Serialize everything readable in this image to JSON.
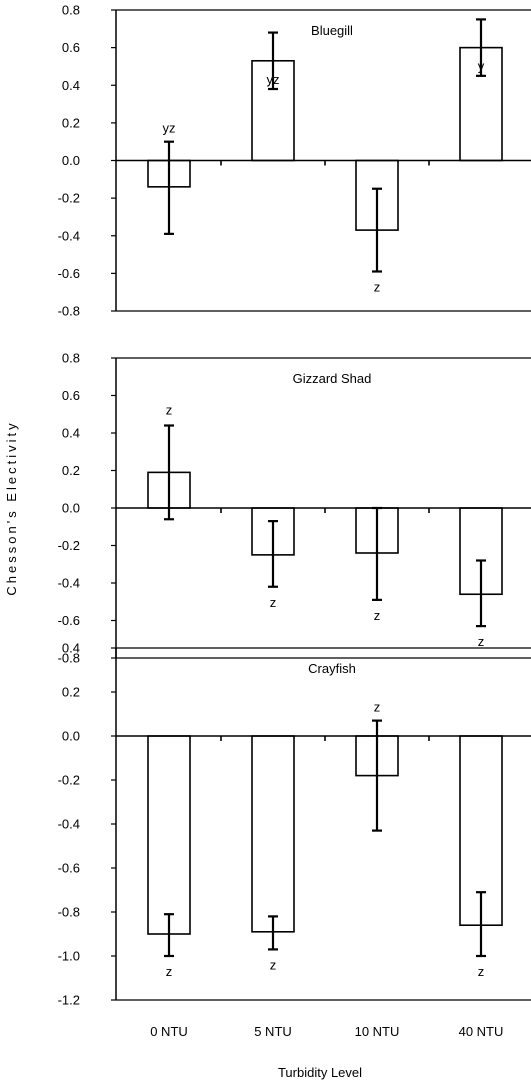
{
  "chart_data": [
    {
      "type": "bar",
      "title": "Bluegill",
      "categories": [
        "0 NTU",
        "5 NTU",
        "10 NTU",
        "40 NTU"
      ],
      "values": [
        -0.14,
        0.53,
        -0.37,
        0.6
      ],
      "error_low": [
        -0.39,
        0.38,
        -0.59,
        0.45
      ],
      "error_high": [
        0.1,
        0.68,
        -0.15,
        0.75
      ],
      "significance": [
        "yz",
        "yz",
        "z",
        "y"
      ],
      "ylim": [
        -0.8,
        0.8
      ],
      "yticks": [
        "0.8",
        "0.6",
        "0.4",
        "0.2",
        "0.0",
        "-0.2",
        "-0.4",
        "-0.6",
        "-0.8"
      ]
    },
    {
      "type": "bar",
      "title": "Gizzard Shad",
      "categories": [
        "0 NTU",
        "5 NTU",
        "10 NTU",
        "40 NTU"
      ],
      "values": [
        0.19,
        -0.25,
        -0.24,
        -0.46
      ],
      "error_low": [
        -0.06,
        -0.42,
        -0.49,
        -0.63
      ],
      "error_high": [
        0.44,
        -0.07,
        0.0,
        -0.28
      ],
      "significance": [
        "z",
        "z",
        "z",
        "z"
      ],
      "ylim": [
        -0.8,
        0.8
      ],
      "yticks": [
        "0.8",
        "0.6",
        "0.4",
        "0.2",
        "0.0",
        "-0.2",
        "-0.4",
        "-0.6",
        "-0.8"
      ]
    },
    {
      "type": "bar",
      "title": "Crayfish",
      "categories": [
        "0 NTU",
        "5 NTU",
        "10 NTU",
        "40 NTU"
      ],
      "values": [
        -0.9,
        -0.89,
        -0.18,
        -0.86
      ],
      "error_low": [
        -1.0,
        -0.97,
        -0.43,
        -1.0
      ],
      "error_high": [
        -0.81,
        -0.82,
        0.07,
        -0.71
      ],
      "significance": [
        "z",
        "z",
        "z",
        "z"
      ],
      "ylim": [
        -1.2,
        0.4
      ],
      "yticks": [
        "0.4",
        "0.2",
        "0.0",
        "-0.2",
        "-0.4",
        "-0.6",
        "-0.8",
        "-1.0",
        "-1.2"
      ]
    }
  ],
  "axes": {
    "ylabel": "Chesson's Electivity",
    "xlabel": "Turbidity Level",
    "categories": [
      "0 NTU",
      "5 NTU",
      "10 NTU",
      "40 NTU"
    ]
  }
}
